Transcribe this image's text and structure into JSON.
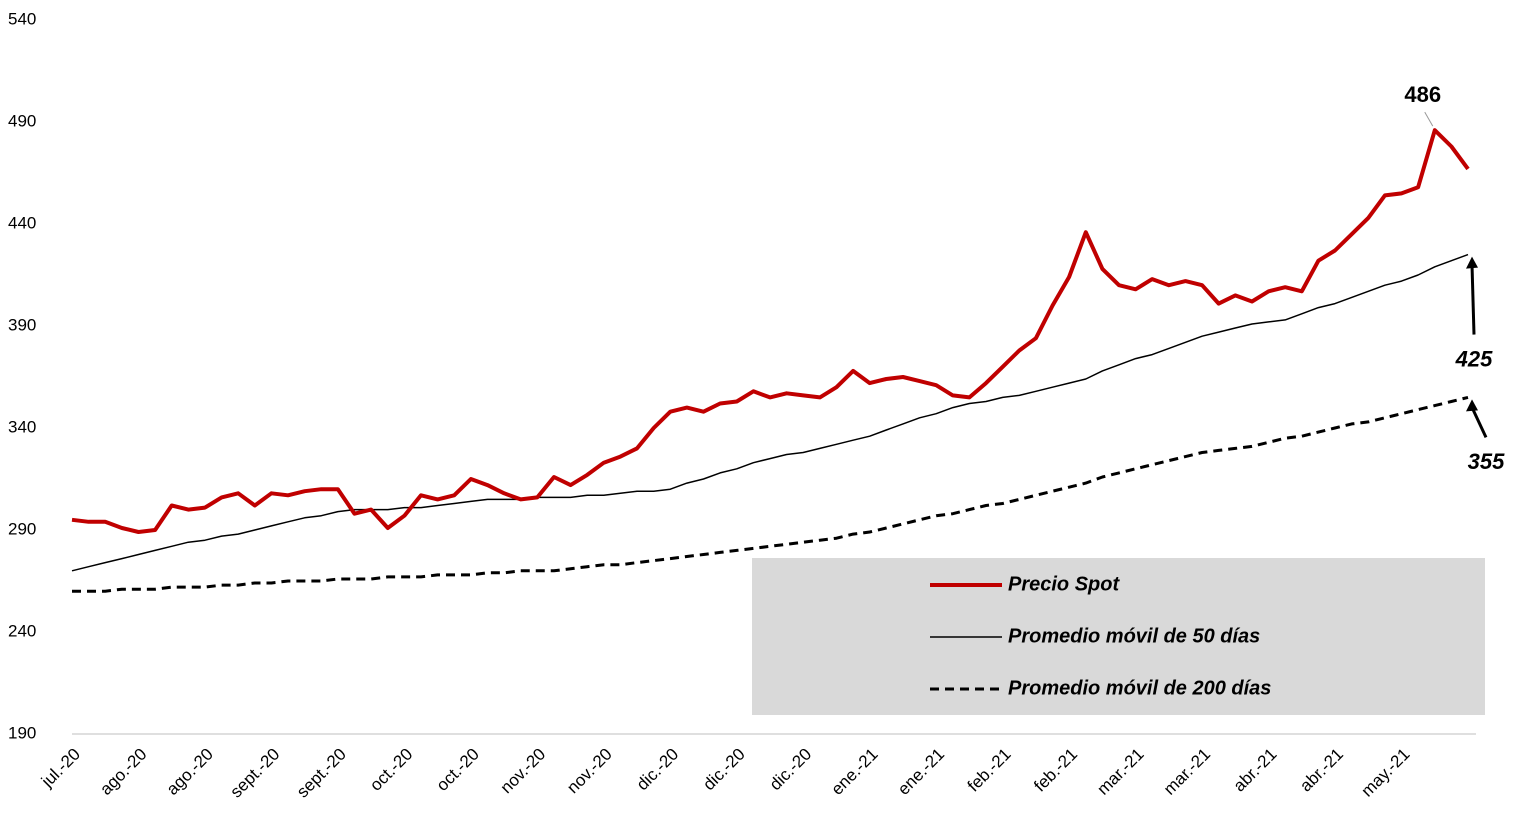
{
  "chart_data": {
    "type": "line",
    "categories": [
      "jul.-20",
      null,
      null,
      null,
      "ago.-20",
      null,
      null,
      null,
      "ago.-20",
      null,
      null,
      null,
      "sept.-20",
      null,
      null,
      null,
      "sept.-20",
      null,
      null,
      null,
      "oct.-20",
      null,
      null,
      null,
      "oct.-20",
      null,
      null,
      null,
      "nov.-20",
      null,
      null,
      null,
      "nov.-20",
      null,
      null,
      null,
      "dic.-20",
      null,
      null,
      null,
      "dic.-20",
      null,
      null,
      null,
      "dic.-20",
      null,
      null,
      null,
      "ene.-21",
      null,
      null,
      null,
      "ene.-21",
      null,
      null,
      null,
      "feb.-21",
      null,
      null,
      null,
      "feb.-21",
      null,
      null,
      null,
      "mar.-21",
      null,
      null,
      null,
      "mar.-21",
      null,
      null,
      null,
      "abr.-21",
      null,
      null,
      null,
      "abr.-21",
      null,
      null,
      null,
      "may.-21",
      null,
      null,
      null,
      null
    ],
    "series": [
      {
        "name": "Precio Spot",
        "color": "#c00000",
        "values": [
          295,
          294,
          294,
          291,
          289,
          290,
          302,
          300,
          301,
          306,
          308,
          302,
          308,
          307,
          309,
          310,
          310,
          298,
          300,
          291,
          297,
          307,
          305,
          307,
          315,
          312,
          308,
          305,
          306,
          316,
          312,
          317,
          323,
          326,
          330,
          340,
          348,
          350,
          348,
          352,
          353,
          358,
          355,
          357,
          356,
          355,
          360,
          368,
          362,
          364,
          365,
          363,
          361,
          356,
          355,
          362,
          370,
          378,
          384,
          400,
          414,
          436,
          418,
          410,
          408,
          413,
          410,
          412,
          410,
          401,
          405,
          402,
          407,
          409,
          407,
          422,
          427,
          435,
          443,
          454,
          455,
          458,
          486,
          478,
          467
        ]
      },
      {
        "name": "Promedio móvil de 50 días",
        "color": "#000000",
        "values": [
          270,
          272,
          274,
          276,
          278,
          280,
          282,
          284,
          285,
          287,
          288,
          290,
          292,
          294,
          296,
          297,
          299,
          300,
          300,
          300,
          301,
          301,
          302,
          303,
          304,
          305,
          305,
          305,
          306,
          306,
          306,
          307,
          307,
          308,
          309,
          309,
          310,
          313,
          315,
          318,
          320,
          323,
          325,
          327,
          328,
          330,
          332,
          334,
          336,
          339,
          342,
          345,
          347,
          350,
          352,
          353,
          355,
          356,
          358,
          360,
          362,
          364,
          368,
          371,
          374,
          376,
          379,
          382,
          385,
          387,
          389,
          391,
          392,
          393,
          396,
          399,
          401,
          404,
          407,
          410,
          412,
          415,
          419,
          422,
          425
        ]
      },
      {
        "name": "Promedio móvil de 200 días",
        "color": "#000000",
        "dashed": true,
        "values": [
          260,
          260,
          260,
          261,
          261,
          261,
          262,
          262,
          262,
          263,
          263,
          264,
          264,
          265,
          265,
          265,
          266,
          266,
          266,
          267,
          267,
          267,
          268,
          268,
          268,
          269,
          269,
          270,
          270,
          270,
          271,
          272,
          273,
          273,
          274,
          275,
          276,
          277,
          278,
          279,
          280,
          281,
          282,
          283,
          284,
          285,
          286,
          288,
          289,
          291,
          293,
          295,
          297,
          298,
          300,
          302,
          303,
          305,
          307,
          309,
          311,
          313,
          316,
          318,
          320,
          322,
          324,
          326,
          328,
          329,
          330,
          331,
          333,
          335,
          336,
          338,
          340,
          342,
          343,
          345,
          347,
          349,
          351,
          353,
          355
        ]
      }
    ],
    "ylim": [
      190,
      540
    ],
    "yticks": [
      190,
      240,
      290,
      340,
      390,
      440,
      490,
      540
    ],
    "grid": false,
    "legend": "lower right"
  }
}
